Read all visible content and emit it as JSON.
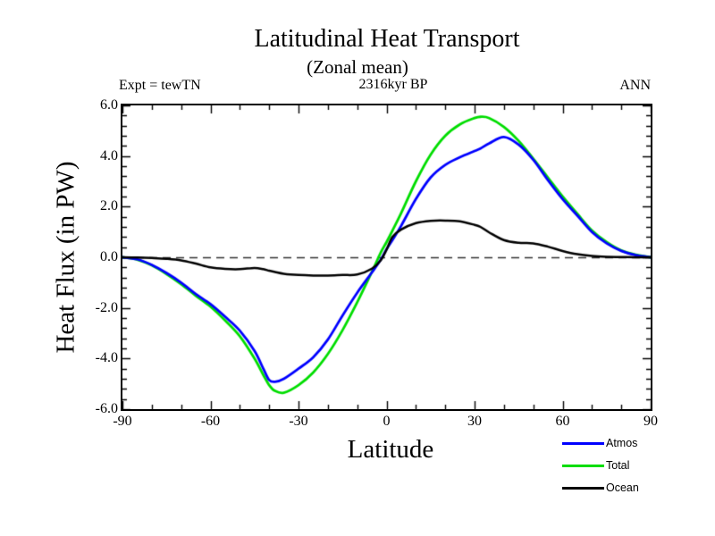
{
  "page": {
    "title": "Latitudinal Heat Transport",
    "subtitle": "(Zonal mean)",
    "expt_label": "Expt = tewTN",
    "time_label": "2316kyr BP",
    "season_label": "ANN"
  },
  "chart_data": {
    "type": "line",
    "title": "Latitudinal Heat Transport",
    "subtitle": "(Zonal mean)",
    "xlabel": "Latitude",
    "ylabel": "Heat Flux (in PW)",
    "xlim": [
      -90,
      90
    ],
    "ylim": [
      -6.0,
      6.0
    ],
    "x_major_ticks": [
      -90,
      -60,
      -30,
      0,
      30,
      60,
      90
    ],
    "x_tick_labels": [
      "-90",
      "-60",
      "-30",
      "0",
      "30",
      "60",
      "90"
    ],
    "x_minor_step": 10,
    "y_major_ticks": [
      6,
      4,
      2,
      0,
      -2,
      -4,
      -6
    ],
    "y_tick_labels": [
      "6.0",
      "4.0",
      "2.0",
      "0.0",
      "-2.0",
      "-4.0",
      "-6.0"
    ],
    "y_minor_step": 0.4,
    "grid": false,
    "zero_line": {
      "value": 0.0,
      "style": "dashed",
      "color": "#333333"
    },
    "legend_position": "bottom-right",
    "axis_color": "#000000",
    "series": [
      {
        "name": "Atmos",
        "color": "#0000ff",
        "x": [
          -90,
          -85,
          -80,
          -75,
          -70,
          -65,
          -60,
          -55,
          -50,
          -45,
          -42,
          -40,
          -38,
          -35,
          -30,
          -25,
          -20,
          -15,
          -10,
          -5,
          -2,
          0,
          2,
          5,
          10,
          15,
          20,
          25,
          30,
          32,
          35,
          40,
          45,
          50,
          55,
          60,
          65,
          70,
          75,
          80,
          85,
          90
        ],
        "y": [
          0.0,
          -0.08,
          -0.3,
          -0.62,
          -1.0,
          -1.45,
          -1.85,
          -2.35,
          -2.9,
          -3.7,
          -4.4,
          -4.85,
          -4.92,
          -4.8,
          -4.4,
          -3.95,
          -3.25,
          -2.3,
          -1.4,
          -0.6,
          -0.1,
          0.32,
          0.68,
          1.25,
          2.3,
          3.15,
          3.65,
          3.95,
          4.2,
          4.3,
          4.5,
          4.75,
          4.45,
          3.85,
          3.05,
          2.3,
          1.65,
          1.0,
          0.55,
          0.25,
          0.08,
          0.0
        ]
      },
      {
        "name": "Total",
        "color": "#00dd00",
        "x": [
          -90,
          -85,
          -80,
          -75,
          -70,
          -65,
          -60,
          -55,
          -50,
          -45,
          -42,
          -40,
          -38,
          -35,
          -30,
          -25,
          -20,
          -15,
          -10,
          -5,
          -2,
          0,
          2,
          5,
          10,
          15,
          20,
          25,
          30,
          32,
          35,
          40,
          45,
          50,
          55,
          60,
          65,
          70,
          75,
          80,
          85,
          90
        ],
        "y": [
          0.0,
          -0.09,
          -0.32,
          -0.66,
          -1.06,
          -1.52,
          -1.95,
          -2.5,
          -3.12,
          -4.0,
          -4.65,
          -5.05,
          -5.28,
          -5.35,
          -5.05,
          -4.55,
          -3.82,
          -2.88,
          -1.78,
          -0.58,
          0.18,
          0.6,
          1.05,
          1.75,
          3.0,
          4.05,
          4.8,
          5.25,
          5.5,
          5.55,
          5.5,
          5.15,
          4.6,
          3.9,
          3.15,
          2.4,
          1.72,
          1.06,
          0.6,
          0.27,
          0.1,
          0.0
        ]
      },
      {
        "name": "Ocean",
        "color": "#000000",
        "x": [
          -90,
          -85,
          -80,
          -75,
          -70,
          -65,
          -60,
          -55,
          -50,
          -45,
          -42,
          -40,
          -38,
          -35,
          -30,
          -25,
          -20,
          -15,
          -10,
          -5,
          -2,
          0,
          2,
          5,
          10,
          15,
          20,
          25,
          30,
          32,
          35,
          40,
          45,
          50,
          55,
          60,
          65,
          70,
          75,
          80,
          85,
          90
        ],
        "y": [
          0.0,
          -0.01,
          -0.03,
          -0.06,
          -0.12,
          -0.25,
          -0.4,
          -0.46,
          -0.47,
          -0.42,
          -0.47,
          -0.53,
          -0.58,
          -0.65,
          -0.7,
          -0.72,
          -0.72,
          -0.7,
          -0.68,
          -0.45,
          -0.12,
          0.3,
          0.8,
          1.1,
          1.35,
          1.44,
          1.45,
          1.42,
          1.28,
          1.2,
          0.98,
          0.68,
          0.57,
          0.55,
          0.42,
          0.25,
          0.12,
          0.05,
          0.02,
          0.01,
          0.0,
          0.0
        ]
      }
    ]
  }
}
